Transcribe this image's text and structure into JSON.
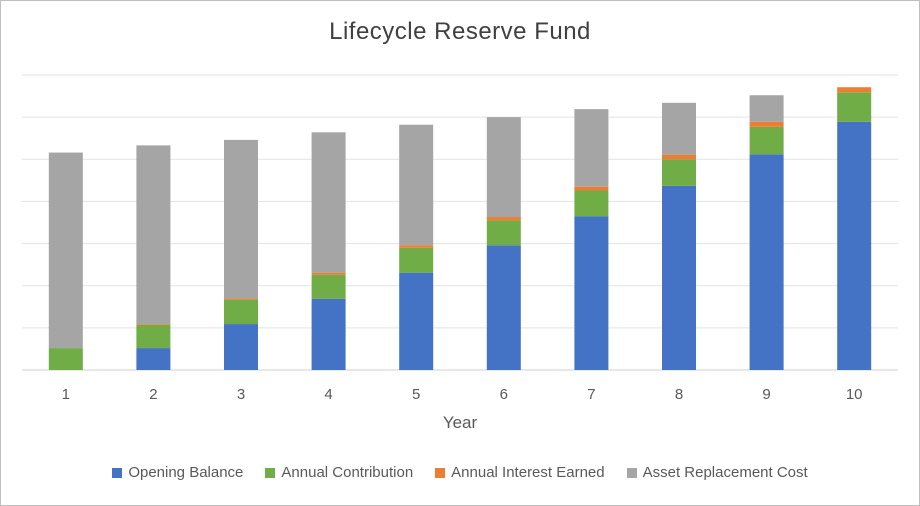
{
  "chart_data": {
    "type": "bar",
    "stacked": true,
    "title": "Lifecycle Reserve Fund",
    "xlabel": "Year",
    "ylabel": "",
    "categories": [
      "1",
      "2",
      "3",
      "4",
      "5",
      "6",
      "7",
      "8",
      "9",
      "10"
    ],
    "ylim": [
      0,
      7
    ],
    "grid": true,
    "y_tick_labels_shown": false,
    "legend_position": "bottom",
    "series": [
      {
        "name": "Opening Balance",
        "color": "#4472C4",
        "values": [
          0,
          0.52,
          1.09,
          1.69,
          2.31,
          2.96,
          3.65,
          4.37,
          5.12,
          5.89
        ]
      },
      {
        "name": "Annual Contribution",
        "color": "#70AD47",
        "values": [
          0.52,
          0.55,
          0.58,
          0.57,
          0.59,
          0.59,
          0.61,
          0.63,
          0.65,
          0.7
        ]
      },
      {
        "name": "Annual Interest Earned",
        "color": "#ED7D31",
        "values": [
          0,
          0.02,
          0.03,
          0.05,
          0.06,
          0.08,
          0.09,
          0.11,
          0.12,
          0.12
        ]
      },
      {
        "name": "Asset Replacement Cost",
        "color": "#A5A5A5",
        "values": [
          4.64,
          4.24,
          3.76,
          3.33,
          2.86,
          2.37,
          1.84,
          1.23,
          0.63,
          0
        ]
      }
    ]
  }
}
